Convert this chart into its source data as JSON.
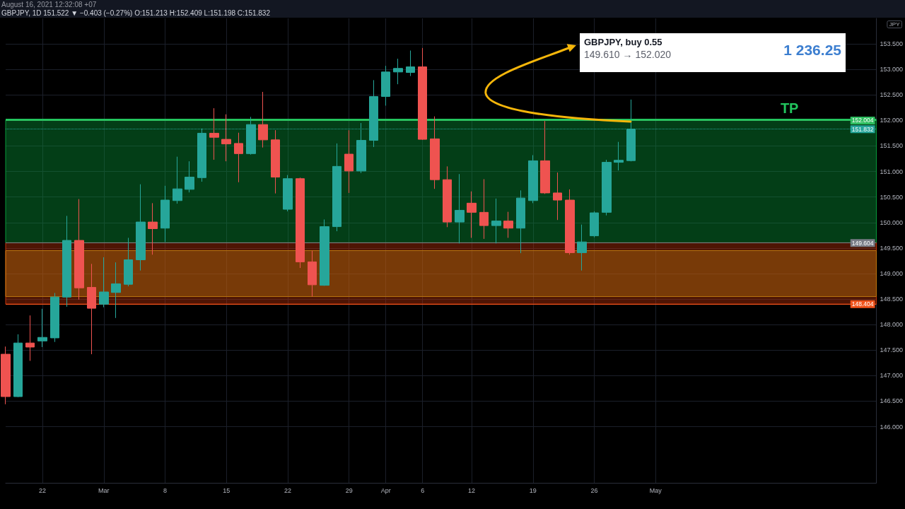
{
  "chart_data": {
    "type": "candlestick",
    "title": "GBPJPY, 1D 151.522 ▼ −0.403 (−0.27%) O:151.213 H:152.409 L:151.198 C:151.832",
    "ylabel": "JPY",
    "annotations": [
      "August 16, 2021 12:32:08 +07",
      "GBPJPY, buy 0.55",
      "149.610 → 152.020",
      "1 236.25"
    ],
    "categories": [
      null,
      null,
      null,
      "22",
      null,
      null,
      null,
      null,
      "Mar",
      null,
      null,
      null,
      null,
      "8",
      null,
      null,
      null,
      null,
      "15",
      null,
      null,
      null,
      null,
      "22",
      null,
      null,
      null,
      null,
      "29",
      null,
      null,
      "Apr",
      null,
      null,
      "6",
      null,
      null,
      null,
      "12",
      null,
      null,
      null,
      null,
      "19",
      null,
      null,
      null,
      null,
      "26",
      null,
      null,
      null,
      null,
      "May",
      null,
      null,
      null,
      null,
      null,
      null,
      null,
      null,
      null,
      null,
      null,
      null,
      null,
      null,
      null,
      null,
      null,
      null
    ],
    "ohlc": [
      [
        147.42,
        147.57,
        146.44,
        146.59
      ],
      [
        146.59,
        147.81,
        146.58,
        147.64
      ],
      [
        147.64,
        148.18,
        147.29,
        147.56
      ],
      [
        147.68,
        148.31,
        147.56,
        147.75
      ],
      [
        147.74,
        148.62,
        147.66,
        148.54
      ],
      [
        148.54,
        150.13,
        148.35,
        149.65
      ],
      [
        149.65,
        150.46,
        148.49,
        148.72
      ],
      [
        148.73,
        149.19,
        147.42,
        148.32
      ],
      [
        148.4,
        149.32,
        148.34,
        148.64
      ],
      [
        148.63,
        149.22,
        148.13,
        148.8
      ],
      [
        148.79,
        149.7,
        148.75,
        149.27
      ],
      [
        149.27,
        150.75,
        149.06,
        150.01
      ],
      [
        150.01,
        150.38,
        149.37,
        149.88
      ],
      [
        149.89,
        150.72,
        149.62,
        150.44
      ],
      [
        150.43,
        151.29,
        150.37,
        150.66
      ],
      [
        150.65,
        151.2,
        150.59,
        150.89
      ],
      [
        150.88,
        151.84,
        150.8,
        151.75
      ],
      [
        151.75,
        152.24,
        151.23,
        151.67
      ],
      [
        151.63,
        152.12,
        151.2,
        151.54
      ],
      [
        151.55,
        151.76,
        150.79,
        151.35
      ],
      [
        151.35,
        152.07,
        151.33,
        151.92
      ],
      [
        151.92,
        152.56,
        151.47,
        151.62
      ],
      [
        151.62,
        151.81,
        150.57,
        150.89
      ],
      [
        150.26,
        150.93,
        150.22,
        150.86
      ],
      [
        150.86,
        150.88,
        149.11,
        149.23
      ],
      [
        149.23,
        149.45,
        148.55,
        148.78
      ],
      [
        148.77,
        150.06,
        148.76,
        149.92
      ],
      [
        149.92,
        151.55,
        149.83,
        151.1
      ],
      [
        151.34,
        151.81,
        150.58,
        151.01
      ],
      [
        151.01,
        151.95,
        150.97,
        151.61
      ],
      [
        151.61,
        152.79,
        151.48,
        152.47
      ],
      [
        152.47,
        153.07,
        152.29,
        152.95
      ],
      [
        152.95,
        153.21,
        152.71,
        153.02
      ],
      [
        152.94,
        153.37,
        152.87,
        153.05
      ],
      [
        153.05,
        153.42,
        151.62,
        151.63
      ],
      [
        151.64,
        152.08,
        150.66,
        150.84
      ],
      [
        150.84,
        151.1,
        149.91,
        150.01
      ],
      [
        150.01,
        150.95,
        149.59,
        150.24
      ],
      [
        150.38,
        150.61,
        149.7,
        150.2
      ],
      [
        150.2,
        150.85,
        149.68,
        149.94
      ],
      [
        149.94,
        150.47,
        149.59,
        150.03
      ],
      [
        150.03,
        150.21,
        149.7,
        149.89
      ],
      [
        149.89,
        150.63,
        149.4,
        150.48
      ],
      [
        150.43,
        151.32,
        150.38,
        151.21
      ],
      [
        151.21,
        151.99,
        150.56,
        150.58
      ],
      [
        150.58,
        150.98,
        150.05,
        150.44
      ],
      [
        150.44,
        150.65,
        149.37,
        149.41
      ],
      [
        149.41,
        149.96,
        149.06,
        149.62
      ],
      [
        149.74,
        150.22,
        149.71,
        150.19
      ],
      [
        150.2,
        151.23,
        150.14,
        151.18
      ],
      [
        151.18,
        151.58,
        151.02,
        151.22
      ],
      [
        151.213,
        152.409,
        151.198,
        151.832
      ],
      null,
      null,
      null,
      null,
      null,
      null,
      null,
      null,
      null,
      null,
      null,
      null,
      null,
      null,
      null,
      null,
      null,
      null,
      null,
      null
    ],
    "colors": [
      "#ef5350",
      "#26a69a",
      "#ef5350",
      "#26a69a",
      "#26a69a",
      "#26a69a",
      "#ef5350",
      "#ef5350",
      "#26a69a",
      "#26a69a",
      "#26a69a",
      "#26a69a",
      "#ef5350",
      "#26a69a",
      "#26a69a",
      "#26a69a",
      "#26a69a",
      "#ef5350",
      "#ef5350",
      "#ef5350",
      "#26a69a",
      "#ef5350",
      "#ef5350",
      "#26a69a",
      "#ef5350",
      "#ef5350",
      "#26a69a",
      "#26a69a",
      "#ef5350",
      "#26a69a",
      "#26a69a",
      "#26a69a",
      "#26a69a",
      "#26a69a",
      "#ef5350",
      "#ef5350",
      "#ef5350",
      "#26a69a",
      "#ef5350",
      "#ef5350",
      "#26a69a",
      "#ef5350",
      "#26a69a",
      "#26a69a",
      "#ef5350",
      "#ef5350",
      "#ef5350",
      "#26a69a",
      "#26a69a",
      "#26a69a",
      "#26a69a",
      "#26a69a",
      null,
      null,
      null,
      null,
      null,
      null,
      null,
      null,
      null,
      null,
      null,
      null,
      null,
      null,
      null,
      null,
      null,
      null,
      null,
      null
    ],
    "ylim": [
      144.9,
      154
    ],
    "yticks": [
      {
        "value": 146,
        "label": "146.000"
      },
      {
        "value": 146.5,
        "label": "146.500"
      },
      {
        "value": 147,
        "label": "147.000"
      },
      {
        "value": 147.5,
        "label": "147.500"
      },
      {
        "value": 148,
        "label": "148.000"
      },
      {
        "value": 148.5,
        "label": "148.500"
      },
      {
        "value": 149,
        "label": "149.000"
      },
      {
        "value": 149.5,
        "label": "149.500"
      },
      {
        "value": 150,
        "label": "150.000"
      },
      {
        "value": 150.5,
        "label": "150.500"
      },
      {
        "value": 151,
        "label": "151.000"
      },
      {
        "value": 151.5,
        "label": "151.500"
      },
      {
        "value": 152,
        "label": "152.000"
      },
      {
        "value": 152.5,
        "label": "152.500"
      },
      {
        "value": 153,
        "label": "153.000"
      },
      {
        "value": 153.5,
        "label": "153.500"
      }
    ],
    "bands": [
      {
        "axis": "y",
        "from": 149.604,
        "to": 152.004,
        "color": "#089a3a"
      },
      {
        "axis": "y",
        "from": 148.404,
        "to": 149.604,
        "color": "#c4350a"
      },
      {
        "axis": "y",
        "from": 148.55,
        "to": 149.45,
        "color": "#b8740f"
      }
    ],
    "ref_lines": [
      {
        "axis": "y",
        "value": 152.004,
        "label": "152.004",
        "color": "#2ebd5f"
      },
      {
        "axis": "y",
        "value": 151.832,
        "label": "151.832",
        "color": "#26a69a",
        "line_style": "dotted"
      },
      {
        "axis": "y",
        "value": 149.604,
        "label": "149.604",
        "color": "#787b86"
      },
      {
        "axis": "y",
        "value": 148.404,
        "label": "148.404",
        "color": "#f0531c"
      },
      {
        "axis": "y",
        "value": 152.02,
        "label": "TP",
        "color": "#22c55e"
      }
    ],
    "grid": true
  }
}
